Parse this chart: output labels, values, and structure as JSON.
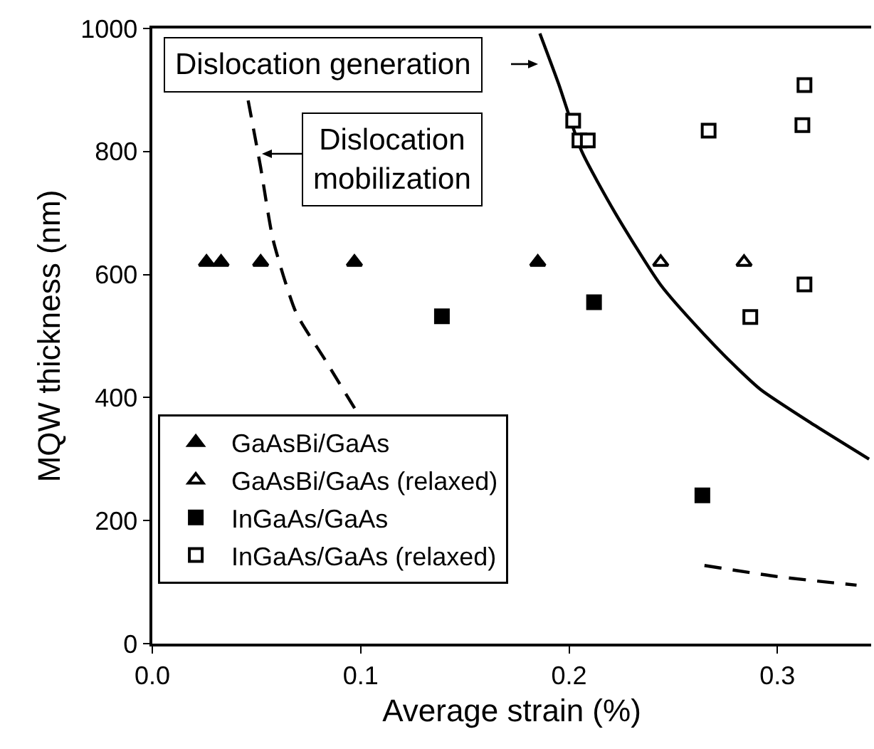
{
  "chart_data": {
    "type": "scatter",
    "xlabel": "Average strain (%)",
    "ylabel": "MQW thickness (nm)",
    "xlim": [
      0,
      0.345
    ],
    "xticks": [
      {
        "value": 0,
        "label": "0.0"
      },
      0.1,
      0.2,
      0.3
    ],
    "ylim": [
      0,
      1000
    ],
    "yticks": [
      0,
      200,
      400,
      600,
      800,
      1000
    ],
    "grid": false,
    "legend": "bottom left",
    "series": [
      {
        "name": "GaAsBi/GaAs",
        "color": "#000000",
        "marker": "triangle",
        "x": [
          0.026,
          0.033,
          0.052,
          0.097,
          0.185
        ],
        "values": [
          620,
          620,
          620,
          620,
          620
        ]
      },
      {
        "name": "GaAsBi/GaAs (relaxed)",
        "color": "#ffffff",
        "marker": "triangle",
        "x": [
          0.244,
          0.284
        ],
        "values": [
          620,
          620
        ]
      },
      {
        "name": "InGaAs/GaAs",
        "color": "#000000",
        "marker": "square",
        "x": [
          0.139,
          0.212,
          0.264
        ],
        "values": [
          532,
          555,
          241
        ]
      },
      {
        "name": "InGaAs/GaAs (relaxed)",
        "color": "#ffffff",
        "marker": "square",
        "x": [
          0.202,
          0.205,
          0.209,
          0.267,
          0.313,
          0.312,
          0.313,
          0.287
        ],
        "values": [
          850,
          818,
          818,
          834,
          908,
          843,
          584,
          531
        ]
      },
      {
        "type": "line",
        "color": "#000000",
        "marker": "none",
        "line_style": "solid",
        "x": [
          0.186,
          0.195,
          0.206,
          0.222,
          0.244,
          0.265,
          0.281,
          0.292,
          0.316,
          0.344
        ],
        "values": [
          992,
          910,
          801,
          701,
          583,
          502,
          447,
          413,
          359,
          300
        ]
      },
      {
        "type": "line",
        "color": "#000000",
        "marker": "none",
        "line_style": "dashed",
        "x": [
          0.046,
          0.052,
          0.058,
          0.069,
          0.083,
          0.099,
          0.23,
          0.265,
          0.3,
          0.338
        ],
        "values": [
          883,
          774,
          656,
          538,
          461,
          372,
          null,
          127,
          109,
          95
        ]
      }
    ],
    "annotations": [
      "Dislocation generation",
      "Dislocation\nmobilization"
    ]
  }
}
